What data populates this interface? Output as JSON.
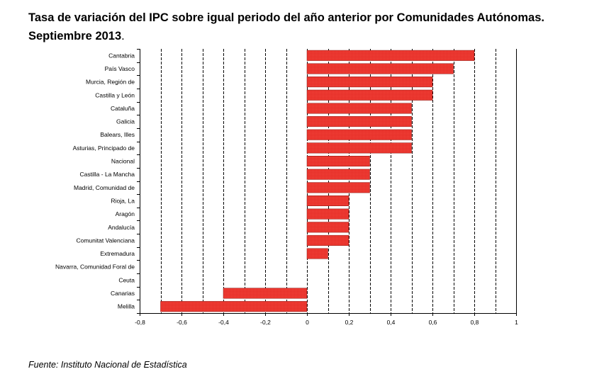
{
  "title": "Tasa de variación del IPC sobre igual periodo del año anterior por Comunidades Autónomas.",
  "subtitle": "Septiembre 2013",
  "subtitle_suffix": ".",
  "source": "Fuente: Instituto Nacional de Estadística",
  "colors": {
    "bar": "#e8302a",
    "bar_border": "#8b1a14",
    "grid": "#000000",
    "text": "#000000"
  },
  "chart_data": {
    "type": "bar",
    "orientation": "horizontal",
    "title": "Tasa de variación del IPC sobre igual periodo del año anterior por Comunidades Autónomas. Septiembre 2013.",
    "categories": [
      "Cantabria",
      "País Vasco",
      "Murcia, Región de",
      "Castilla y León",
      "Cataluña",
      "Galicia",
      "Balears, Illes",
      "Asturias, Principado de",
      "Nacional",
      "Castilla - La Mancha",
      "Madrid, Comunidad de",
      "Rioja, La",
      "Aragón",
      "Andalucía",
      "Comunitat Valenciana",
      "Extremadura",
      "Navarra, Comunidad Foral de",
      "Ceuta",
      "Canarias",
      "Melilla"
    ],
    "values": [
      0.8,
      0.7,
      0.6,
      0.6,
      0.5,
      0.5,
      0.5,
      0.5,
      0.3,
      0.3,
      0.3,
      0.2,
      0.2,
      0.2,
      0.2,
      0.1,
      0.0,
      0.0,
      -0.4,
      -0.7
    ],
    "xlim": [
      -0.8,
      1.0
    ],
    "xticks": [
      "-0,8",
      "-0,6",
      "-0,4",
      "-0,2",
      "0",
      "0,2",
      "0,4",
      "0,6",
      "0,8",
      "1"
    ],
    "xtick_values": [
      -0.8,
      -0.6,
      -0.4,
      -0.2,
      0,
      0.2,
      0.4,
      0.6,
      0.8,
      1.0
    ],
    "minor_grid_step": 0.1,
    "grid": "vertical dashed",
    "xlabel": "",
    "ylabel": ""
  }
}
